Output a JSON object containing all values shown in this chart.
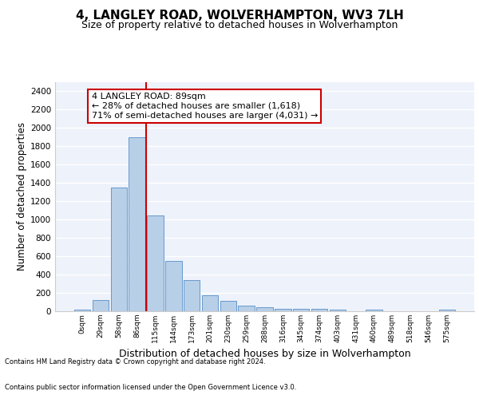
{
  "title1": "4, LANGLEY ROAD, WOLVERHAMPTON, WV3 7LH",
  "title2": "Size of property relative to detached houses in Wolverhampton",
  "xlabel": "Distribution of detached houses by size in Wolverhampton",
  "ylabel": "Number of detached properties",
  "bar_labels": [
    "0sqm",
    "29sqm",
    "58sqm",
    "86sqm",
    "115sqm",
    "144sqm",
    "173sqm",
    "201sqm",
    "230sqm",
    "259sqm",
    "288sqm",
    "316sqm",
    "345sqm",
    "374sqm",
    "403sqm",
    "431sqm",
    "460sqm",
    "489sqm",
    "518sqm",
    "546sqm",
    "575sqm"
  ],
  "bar_values": [
    20,
    125,
    1350,
    1900,
    1045,
    545,
    340,
    170,
    110,
    65,
    40,
    30,
    25,
    25,
    15,
    0,
    20,
    0,
    0,
    0,
    15
  ],
  "bar_color": "#b8cfe8",
  "bar_edge_color": "#6699cc",
  "ylim": [
    0,
    2500
  ],
  "yticks": [
    0,
    200,
    400,
    600,
    800,
    1000,
    1200,
    1400,
    1600,
    1800,
    2000,
    2200,
    2400
  ],
  "vline_x": 3.5,
  "vline_color": "#cc0000",
  "annotation_text": "4 LANGLEY ROAD: 89sqm\n← 28% of detached houses are smaller (1,618)\n71% of semi-detached houses are larger (4,031) →",
  "annotation_box_color": "#ffffff",
  "annotation_box_edge": "#cc0000",
  "footer1": "Contains HM Land Registry data © Crown copyright and database right 2024.",
  "footer2": "Contains public sector information licensed under the Open Government Licence v3.0.",
  "bg_color": "#eef2fb",
  "grid_color": "#ffffff",
  "title1_fontsize": 11,
  "title2_fontsize": 9,
  "xlabel_fontsize": 9,
  "ylabel_fontsize": 8.5
}
